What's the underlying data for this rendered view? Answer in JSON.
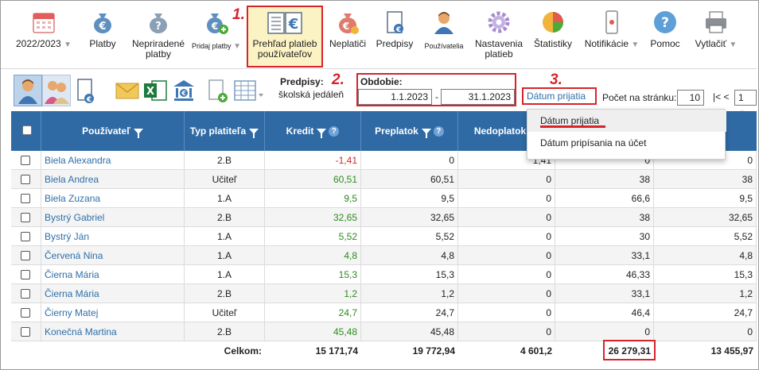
{
  "toolbar": {
    "items": [
      {
        "label": "2022/2023",
        "icon": "calendar-icon",
        "arrow": "▼"
      },
      {
        "label": "Platby",
        "icon": "money-bag-icon"
      },
      {
        "label": "Nepriradené platby",
        "icon": "money-bag-question-icon"
      },
      {
        "label": "Pridaj platby",
        "icon": "money-bag-add-icon",
        "arrow": "▼"
      },
      {
        "label": "Prehľad platieb používateľov",
        "icon": "ledger-euro-icon"
      },
      {
        "label": "Neplatiči",
        "icon": "money-bag-warning-icon"
      },
      {
        "label": "Predpisy",
        "icon": "document-euro-icon"
      },
      {
        "label": "Používatelia",
        "icon": "user-icon"
      },
      {
        "label": "Nastavenia platieb",
        "icon": "gear-icon"
      },
      {
        "label": "Štatistiky",
        "icon": "pie-chart-icon"
      },
      {
        "label": "Notifikácie",
        "icon": "phone-icon",
        "arrow": "▼"
      },
      {
        "label": "Pomoc",
        "icon": "help-icon"
      },
      {
        "label": "Vytlačiť",
        "icon": "printer-icon",
        "arrow": "▼"
      }
    ],
    "step1": "1."
  },
  "filter": {
    "predpisy_label": "Predpisy:",
    "predpisy_value": "školská jedáleň",
    "step2": "2.",
    "obdobie_label": "Obdobie:",
    "date_from": "1.1.2023",
    "date_sep": "-",
    "date_to": "31.1.2023",
    "step3": "3.",
    "date_type": "Dátum prijatia",
    "per_page_label": "Počet na stránku:",
    "per_page_value": "10",
    "pager_prev": "|< <",
    "page_value": "1"
  },
  "dropdown": {
    "options": [
      "Dátum prijatia",
      "Dátum pripísania na účet"
    ]
  },
  "table": {
    "headers": {
      "user": "Používateľ",
      "payer_type": "Typ platiteľa",
      "credit": "Kredit",
      "overpay": "Preplatok",
      "underpay": "Nedoplatok",
      "col6": "",
      "col7": ""
    },
    "rows": [
      {
        "name": "Biela Alexandra",
        "type": "2.B",
        "credit": "-1,41",
        "overpay": "0",
        "underpay": "1,41",
        "c6": "0",
        "c7": "0"
      },
      {
        "name": "Biela Andrea",
        "type": "Učiteľ",
        "credit": "60,51",
        "overpay": "60,51",
        "underpay": "0",
        "c6": "38",
        "c7": "38"
      },
      {
        "name": "Biela Zuzana",
        "type": "1.A",
        "credit": "9,5",
        "overpay": "9,5",
        "underpay": "0",
        "c6": "66,6",
        "c7": "9,5"
      },
      {
        "name": "Bystrý Gabriel",
        "type": "2.B",
        "credit": "32,65",
        "overpay": "32,65",
        "underpay": "0",
        "c6": "38",
        "c7": "32,65"
      },
      {
        "name": "Bystrý Ján",
        "type": "1.A",
        "credit": "5,52",
        "overpay": "5,52",
        "underpay": "0",
        "c6": "30",
        "c7": "5,52"
      },
      {
        "name": "Červená Nina",
        "type": "1.A",
        "credit": "4,8",
        "overpay": "4,8",
        "underpay": "0",
        "c6": "33,1",
        "c7": "4,8"
      },
      {
        "name": "Čierna Mária",
        "type": "1.A",
        "credit": "15,3",
        "overpay": "15,3",
        "underpay": "0",
        "c6": "46,33",
        "c7": "15,3"
      },
      {
        "name": "Čierna Mária",
        "type": "2.B",
        "credit": "1,2",
        "overpay": "1,2",
        "underpay": "0",
        "c6": "33,1",
        "c7": "1,2"
      },
      {
        "name": "Čierny Matej",
        "type": "Učiteľ",
        "credit": "24,7",
        "overpay": "24,7",
        "underpay": "0",
        "c6": "46,4",
        "c7": "24,7"
      },
      {
        "name": "Konečná Martina",
        "type": "2.B",
        "credit": "45,48",
        "overpay": "45,48",
        "underpay": "0",
        "c6": "0",
        "c7": "0"
      }
    ],
    "total": {
      "label": "Celkom:",
      "credit": "15 171,74",
      "overpay": "19 772,94",
      "underpay": "4 601,2",
      "c6": "26 279,31",
      "c7": "13 455,97"
    }
  },
  "colors": {
    "header_blue": "#2f6aa4",
    "highlight_red": "#d6242a",
    "positive_green": "#2e8b1f",
    "link_blue": "#2f6fa8",
    "active_bg": "#fbf3c4"
  }
}
